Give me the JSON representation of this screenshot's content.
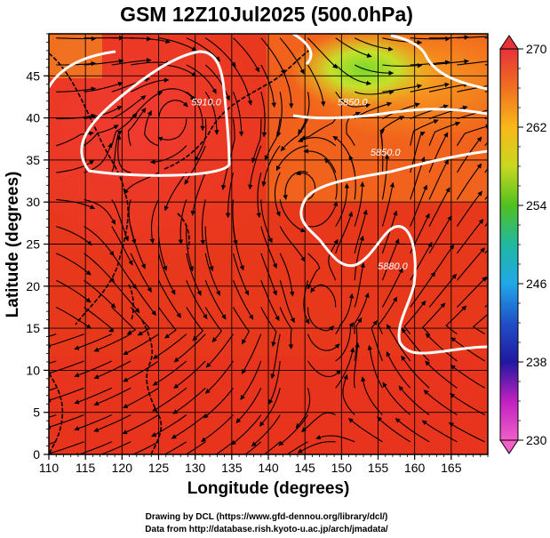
{
  "chart_data": {
    "type": "heatmap",
    "title": "GSM 12Z10Jul2025 (500.0hPa)",
    "xlabel": "Longitude (degrees)",
    "ylabel": "Latitude  (degrees)",
    "xlim": [
      110,
      170
    ],
    "ylim": [
      0,
      50
    ],
    "xticks": [
      "110",
      "115",
      "120",
      "125",
      "130",
      "135",
      "140",
      "145",
      "150",
      "155",
      "160",
      "165"
    ],
    "yticks": [
      "0",
      "5",
      "10",
      "15",
      "20",
      "25",
      "30",
      "35",
      "40",
      "45"
    ],
    "colorbar": {
      "min": 230,
      "max": 270,
      "labels": [
        "270",
        "262",
        "254",
        "246",
        "238",
        "230"
      ],
      "colors": [
        "#e8323a",
        "#f07020",
        "#f8b818",
        "#c8d820",
        "#50c020",
        "#20b8a0",
        "#20a8e8",
        "#2050c8",
        "#2018a0",
        "#c020c0",
        "#f060c8"
      ]
    },
    "contours": [
      {
        "label": "5910.0",
        "lat": 41.5,
        "lon": 131.5
      },
      {
        "label": "5850.0",
        "lat": 41.5,
        "lon": 151.5
      },
      {
        "label": "5850.0",
        "lat": 35.5,
        "lon": 156.0
      },
      {
        "label": "5880.0",
        "lat": 22.0,
        "lon": 157.0
      }
    ],
    "vortices": [
      {
        "lat": 16.5,
        "lon": 147.5
      },
      {
        "lat": 40.5,
        "lon": 127.5
      },
      {
        "lat": 31.5,
        "lon": 144.5
      }
    ],
    "contour_color": "#ffffff",
    "streamline_color": "#000000"
  },
  "credits": {
    "line1": "Drawing by DCL (https://www.gfd-dennou.org/library/dcl/)",
    "line2": "Data from http://database.rish.kyoto-u.ac.jp/arch/jmadata/"
  }
}
